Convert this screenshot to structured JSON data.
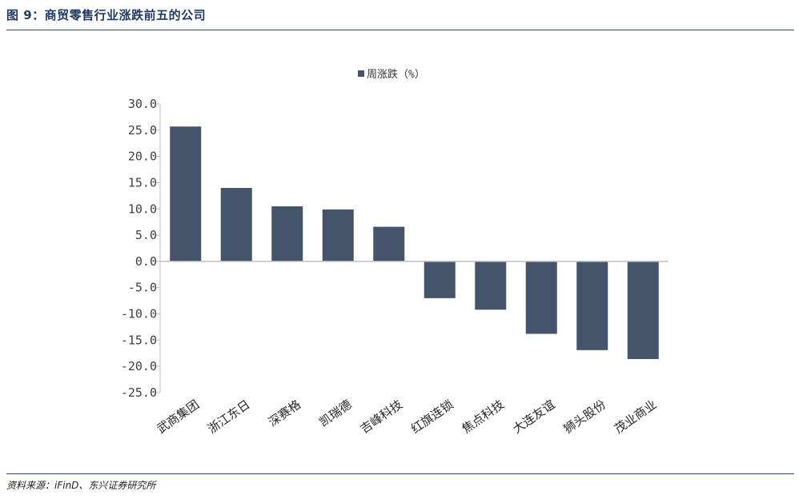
{
  "header": {
    "title": "图 9：商贸零售行业涨跌前五的公司"
  },
  "footer": {
    "source": "资料来源：iFinD、东兴证券研究所"
  },
  "colors": {
    "bar": "#44546a",
    "rule": "#2b4a78",
    "title": "#1f3a64"
  },
  "chart_data": {
    "type": "bar",
    "legend_position": "top-center",
    "grid": false,
    "categories": [
      "武商集团",
      "浙江东日",
      "深赛格",
      "凯瑞德",
      "吉峰科技",
      "红旗连锁",
      "焦点科技",
      "大连友谊",
      "狮头股份",
      "茂业商业"
    ],
    "series": [
      {
        "name": "周涨跌（%）",
        "values": [
          25.7,
          14.0,
          10.5,
          9.9,
          6.6,
          -7.0,
          -9.2,
          -13.8,
          -16.9,
          -18.6
        ]
      }
    ],
    "ylim": [
      -25.0,
      30.0
    ],
    "yticks": [
      "30.0",
      "25.0",
      "20.0",
      "15.0",
      "10.0",
      "5.0",
      "0.0",
      "-5.0",
      "-10.0",
      "-15.0",
      "-20.0",
      "-25.0"
    ]
  }
}
